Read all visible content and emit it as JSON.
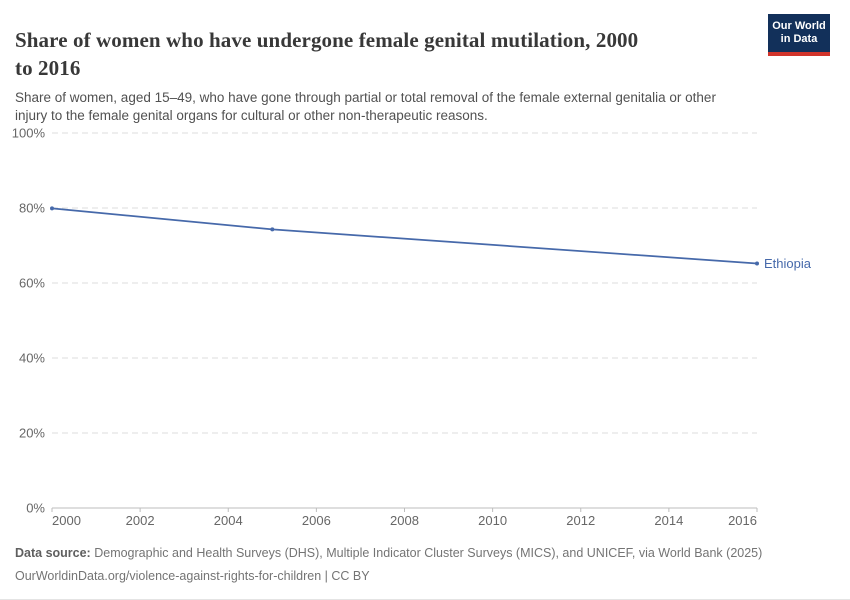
{
  "header": {
    "title_lines": [
      "Share of women who have undergone female genital mutilation, 2000",
      "to 2016"
    ],
    "subtitle_lines": [
      "Share of women, aged 15–49, who have gone through partial or total removal of the female external genitalia or other",
      "injury to the female genital organs for cultural or other non-therapeutic reasons."
    ],
    "logo": {
      "line1": "Our World",
      "line2": "in Data"
    }
  },
  "footer": {
    "datasource_label": "Data source:",
    "datasource_text": "Demographic and Health Surveys (DHS), Multiple Indicator Cluster Surveys (MICS), and UNICEF, via World Bank (2025)",
    "link": "OurWorldinData.org/violence-against-rights-for-children",
    "separator": "|",
    "license": "CC BY"
  },
  "colors": {
    "text_title": "#383838",
    "text_subtitle": "#515151",
    "text_axis": "#676767",
    "text_footer": "#747474",
    "text_footer_bold": "#5f5f5f",
    "grid": "#dcdcdc",
    "axis": "#bdbdbd",
    "logo_bg": "#12305a",
    "logo_red": "#d1342b",
    "series_blue": "#4669aa"
  },
  "chart_data": {
    "type": "line",
    "title": "Share of women who have undergone female genital mutilation, 2000 to 2016",
    "xlabel": "",
    "ylabel": "",
    "xlim": [
      2000,
      2016
    ],
    "ylim": [
      0,
      100
    ],
    "x_ticks": [
      2000,
      2002,
      2004,
      2006,
      2008,
      2010,
      2012,
      2014,
      2016
    ],
    "y_ticks": [
      0,
      20,
      40,
      60,
      80,
      100
    ],
    "y_tick_suffix": "%",
    "grid": "horizontal-dashed",
    "legend_position": "end-of-line-label",
    "series": [
      {
        "name": "Ethiopia",
        "color": "#4669aa",
        "points": [
          {
            "x": 2000,
            "y": 79.9
          },
          {
            "x": 2005,
            "y": 74.3
          },
          {
            "x": 2016,
            "y": 65.2
          }
        ]
      }
    ]
  }
}
